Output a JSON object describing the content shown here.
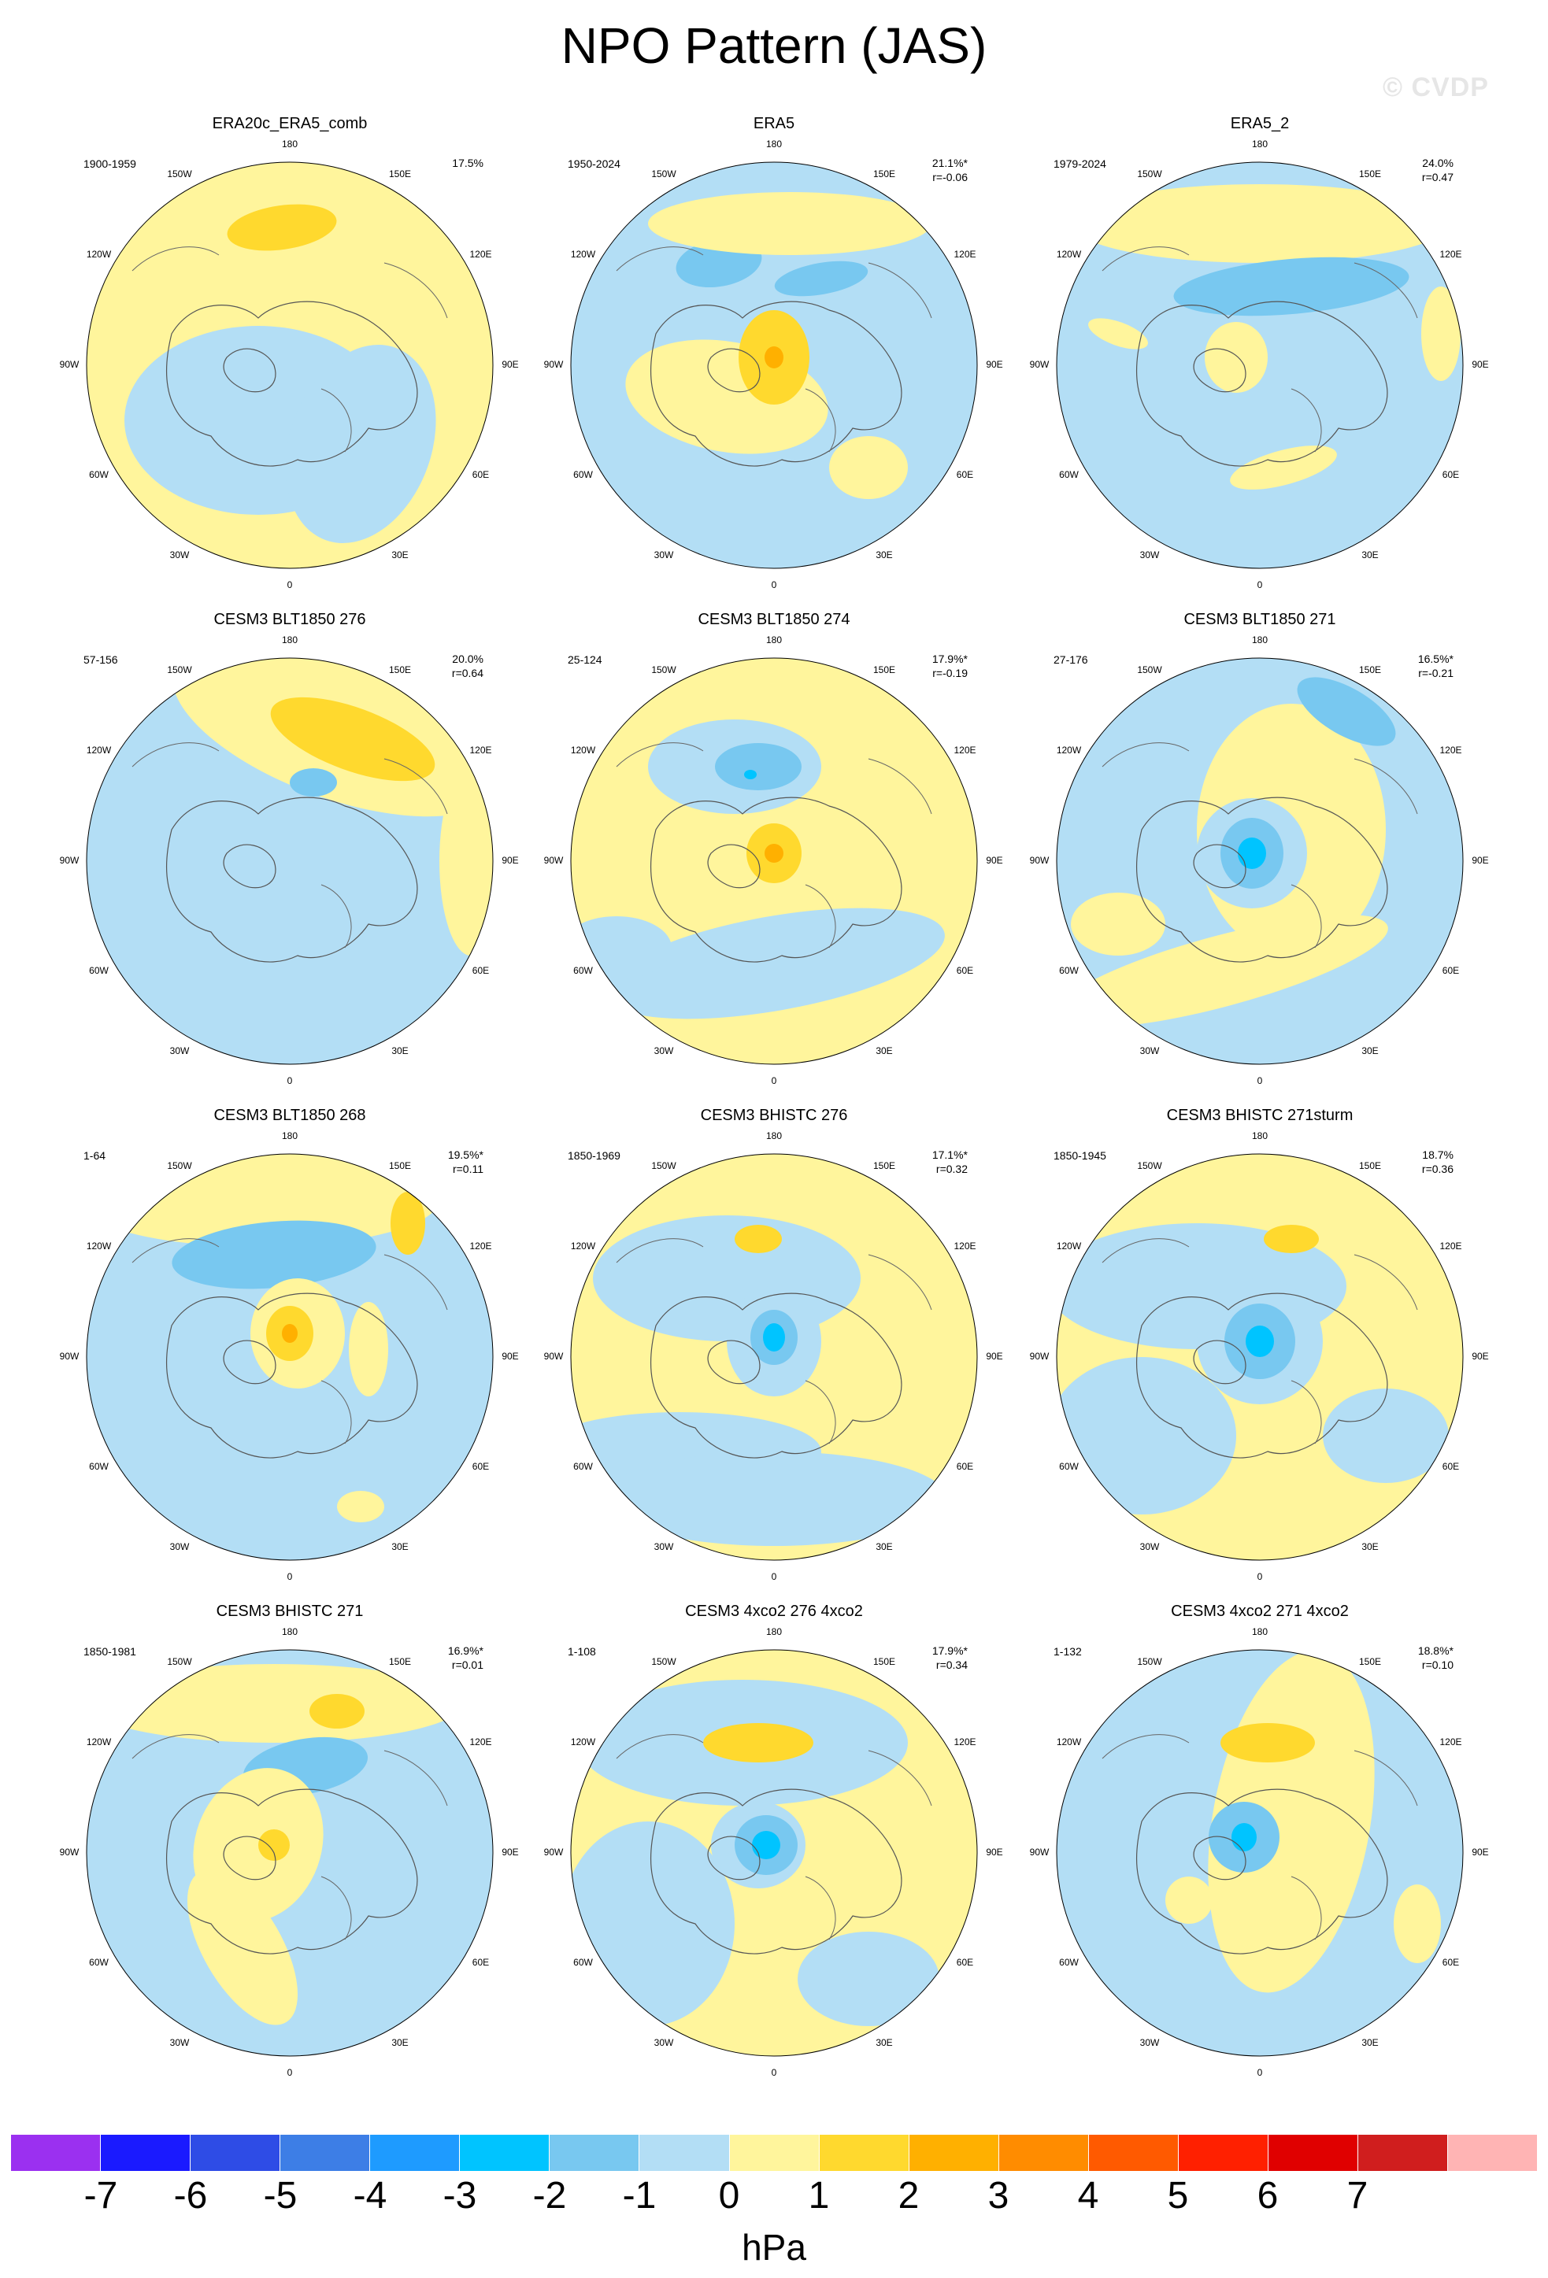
{
  "title": "NPO Pattern (JAS)",
  "watermark": "© CVDP",
  "lon_labels": [
    "180",
    "150E",
    "120E",
    "90E",
    "60E",
    "30E",
    "0",
    "30W",
    "60W",
    "90W",
    "120W",
    "150W"
  ],
  "panels": [
    {
      "title": "ERA20c_ERA5_comb",
      "period": "1900-1959",
      "pct": "17.5%",
      "r": ""
    },
    {
      "title": "ERA5",
      "period": "1950-2024",
      "pct": "21.1%*",
      "r": "r=-0.06"
    },
    {
      "title": "ERA5_2",
      "period": "1979-2024",
      "pct": "24.0%",
      "r": "r=0.47"
    },
    {
      "title": "CESM3 BLT1850 276",
      "period": "57-156",
      "pct": "20.0%",
      "r": "r=0.64"
    },
    {
      "title": "CESM3 BLT1850 274",
      "period": "25-124",
      "pct": "17.9%*",
      "r": "r=-0.19"
    },
    {
      "title": "CESM3 BLT1850 271",
      "period": "27-176",
      "pct": "16.5%*",
      "r": "r=-0.21"
    },
    {
      "title": "CESM3 BLT1850 268",
      "period": "1-64",
      "pct": "19.5%*",
      "r": "r=0.11"
    },
    {
      "title": "CESM3 BHISTC 276",
      "period": "1850-1969",
      "pct": "17.1%*",
      "r": "r=0.32"
    },
    {
      "title": "CESM3 BHISTC 271sturm",
      "period": "1850-1945",
      "pct": "18.7%",
      "r": "r=0.36"
    },
    {
      "title": "CESM3 BHISTC 271",
      "period": "1850-1981",
      "pct": "16.9%*",
      "r": "r=0.01"
    },
    {
      "title": "CESM3 4xco2 276 4xco2",
      "period": "1-108",
      "pct": "17.9%*",
      "r": "r=0.34"
    },
    {
      "title": "CESM3 4xco2 271 4xco2",
      "period": "1-132",
      "pct": "18.8%*",
      "r": "r=0.10"
    }
  ],
  "colorbar": {
    "colors": [
      "#9b30f0",
      "#1a1aff",
      "#2e4ce6",
      "#3d7ee6",
      "#1e9bff",
      "#00c4ff",
      "#78c8f0",
      "#b3def5",
      "#fff59c",
      "#ffd92e",
      "#ffb000",
      "#ff8c00",
      "#ff5a00",
      "#ff2000",
      "#e00000",
      "#d01e1e",
      "#ffb4b4"
    ],
    "ticks": [
      "-7",
      "-6",
      "-5",
      "-4",
      "-3",
      "-2",
      "-1",
      "0",
      "1",
      "2",
      "3",
      "4",
      "5",
      "6",
      "7"
    ],
    "units": "hPa"
  }
}
